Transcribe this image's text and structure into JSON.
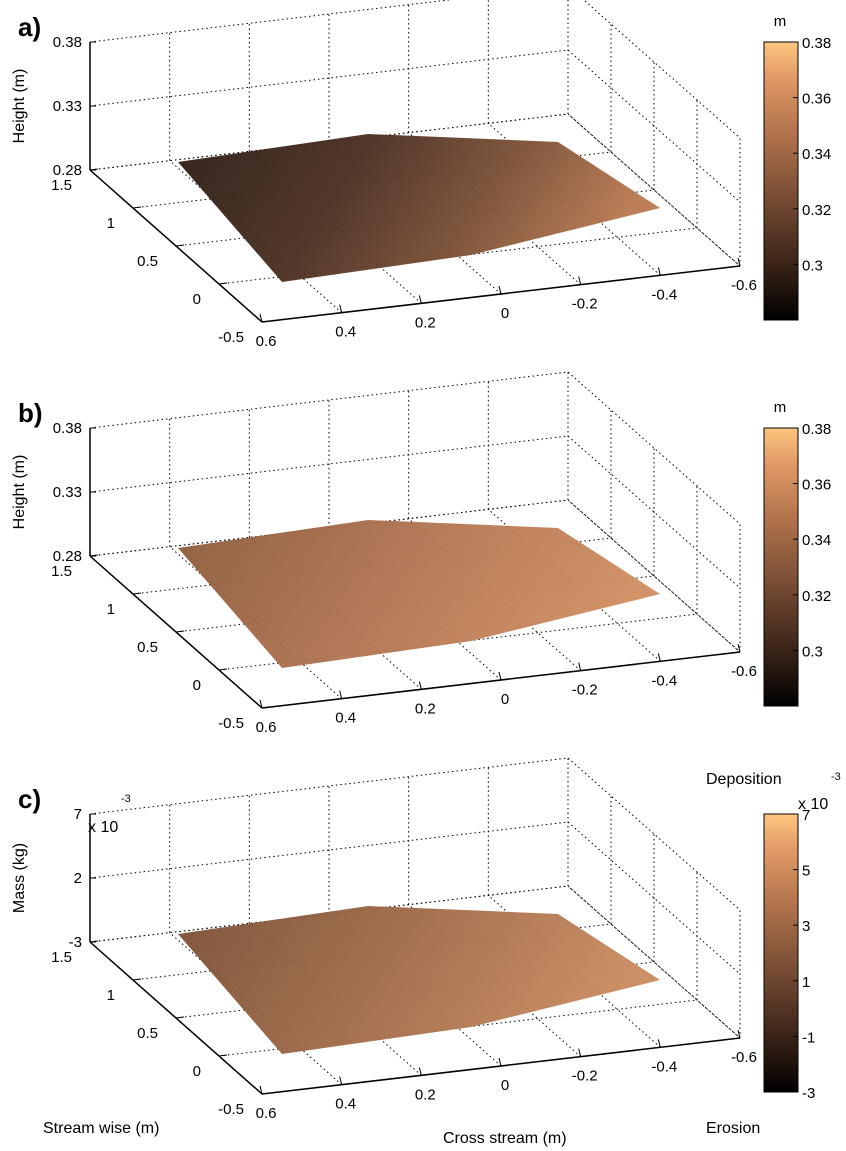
{
  "chart_data": [
    {
      "panel": "a)",
      "type": "surface",
      "zlabel": "Height (m)",
      "z_ticks": [
        "0.28",
        "0.33",
        "0.38"
      ],
      "y_ticks": [
        "-0.5",
        "0",
        "0.5",
        "1",
        "1.5"
      ],
      "x_ticks": [
        "0.6",
        "0.4",
        "0.2",
        "0",
        "-0.2",
        "-0.4",
        "-0.6"
      ],
      "zlim": [
        0.28,
        0.38
      ],
      "colorbar": {
        "unit": "m",
        "ticks": [
          "0.38",
          "0.36",
          "0.34",
          "0.32",
          "0.3"
        ],
        "range": [
          0.28,
          0.38
        ]
      },
      "grid": true
    },
    {
      "panel": "b)",
      "type": "surface",
      "zlabel": "Height (m)",
      "z_ticks": [
        "0.28",
        "0.33",
        "0.38"
      ],
      "y_ticks": [
        "-0.5",
        "0",
        "0.5",
        "1",
        "1.5"
      ],
      "x_ticks": [
        "0.6",
        "0.4",
        "0.2",
        "0",
        "-0.2",
        "-0.4",
        "-0.6"
      ],
      "zlim": [
        0.28,
        0.38
      ],
      "colorbar": {
        "unit": "m",
        "ticks": [
          "0.38",
          "0.36",
          "0.34",
          "0.32",
          "0.3"
        ],
        "range": [
          0.28,
          0.38
        ]
      },
      "grid": true
    },
    {
      "panel": "c)",
      "type": "surface",
      "zlabel": "Mass (kg)",
      "z_exponent": "x 10",
      "z_exponent_power": "-3",
      "z_ticks": [
        "-3",
        "2",
        "7"
      ],
      "y_ticks": [
        "-0.5",
        "0",
        "0.5",
        "1",
        "1.5"
      ],
      "x_ticks": [
        "0.6",
        "0.4",
        "0.2",
        "0",
        "-0.2",
        "-0.4",
        "-0.6"
      ],
      "zlim": [
        -3,
        7
      ],
      "xlabel": "Cross stream (m)",
      "ylabel": "Stream wise (m)",
      "colorbar": {
        "top_label": "Deposition",
        "bottom_label": "Erosion",
        "exponent": "x 10",
        "exponent_power": "-3",
        "ticks": [
          "7",
          "5",
          "3",
          "1",
          "-1",
          "-3"
        ],
        "range": [
          -3,
          7
        ]
      },
      "grid": true
    }
  ],
  "colors": {
    "colormap": [
      "#000000",
      "#3a2418",
      "#7a4e34",
      "#b8784f",
      "#e29c68",
      "#ffc77f"
    ],
    "axis": "#000000",
    "grid": "#000000"
  }
}
